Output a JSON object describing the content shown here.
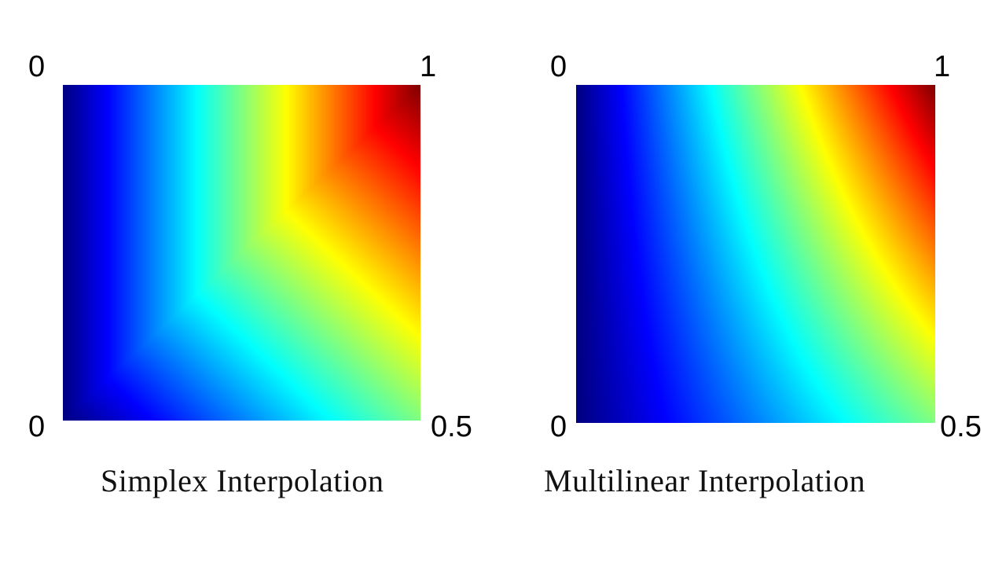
{
  "panels": [
    {
      "method": "simplex",
      "caption": "Simplex Interpolation",
      "corner_values": {
        "top_left": "0",
        "top_right": "1",
        "bottom_left": "0",
        "bottom_right": "0.5"
      }
    },
    {
      "method": "multilinear",
      "caption": "Multilinear Interpolation",
      "corner_values": {
        "top_left": "0",
        "top_right": "1",
        "bottom_left": "0",
        "bottom_right": "0.5"
      }
    }
  ],
  "colormap": "jet"
}
